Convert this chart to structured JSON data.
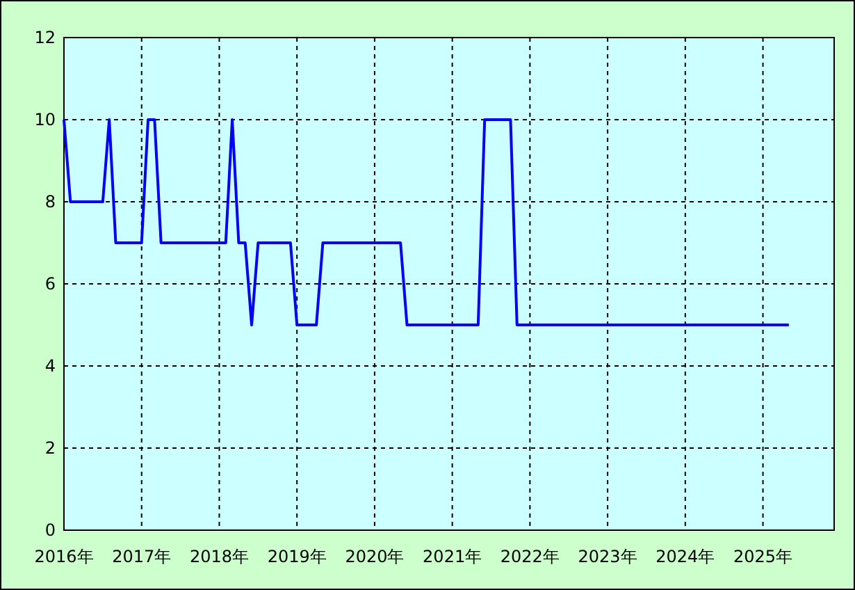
{
  "chart_data": {
    "type": "line",
    "x": [
      "2016-01",
      "2016-02",
      "2016-07",
      "2016-08",
      "2016-09",
      "2017-01",
      "2017-02",
      "2017-03",
      "2017-04",
      "2018-02",
      "2018-03",
      "2018-04",
      "2018-05",
      "2018-06",
      "2018-07",
      "2018-12",
      "2019-01",
      "2019-04",
      "2019-05",
      "2020-05",
      "2020-06",
      "2021-05",
      "2021-06",
      "2021-10",
      "2021-11",
      "2025-05"
    ],
    "series": [
      {
        "color": "#0000ff",
        "values": [
          10,
          8,
          8,
          10,
          7,
          7,
          10,
          10,
          7,
          7,
          10,
          7,
          7,
          5,
          7,
          7,
          5,
          5,
          7,
          7,
          5,
          5,
          10,
          10,
          5,
          5
        ]
      }
    ],
    "xlim": [
      "2016-01",
      "2025-12"
    ],
    "xticks": [
      {
        "value": "2016-01",
        "label": "2016年"
      },
      {
        "value": "2017-01",
        "label": "2017年"
      },
      {
        "value": "2018-01",
        "label": "2018年"
      },
      {
        "value": "2019-01",
        "label": "2019年"
      },
      {
        "value": "2020-01",
        "label": "2020年"
      },
      {
        "value": "2021-01",
        "label": "2021年"
      },
      {
        "value": "2022-01",
        "label": "2022年"
      },
      {
        "value": "2023-01",
        "label": "2023年"
      },
      {
        "value": "2024-01",
        "label": "2024年"
      },
      {
        "value": "2025-01",
        "label": "2025年"
      }
    ],
    "ylim": [
      0,
      12
    ],
    "yticks": [
      0,
      2,
      4,
      6,
      8,
      10,
      12
    ],
    "grid": true
  }
}
